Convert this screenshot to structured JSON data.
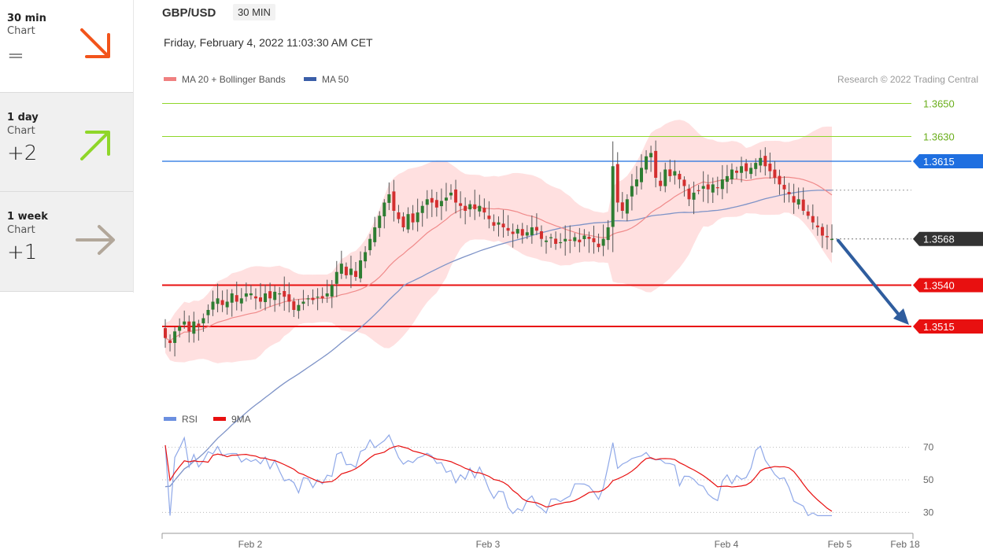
{
  "header": {
    "symbol": "GBP/USD",
    "timeframe_badge": "30 MIN",
    "datetime": "Friday, February 4, 2022 11:03:30 AM CET",
    "copyright": "Research © 2022 Trading Central"
  },
  "sidebar": {
    "items": [
      {
        "title": "30 min",
        "subtitle": "Chart",
        "score": "=",
        "arrow": "arrow-down-right-icon",
        "color": "#f2541b",
        "direction": "down"
      },
      {
        "title": "1 day",
        "subtitle": "Chart",
        "score": "+2",
        "arrow": "arrow-up-right-icon",
        "color": "#8fd629",
        "direction": "up"
      },
      {
        "title": "1 week",
        "subtitle": "Chart",
        "score": "+1",
        "arrow": "arrow-right-icon",
        "color": "#b2a79a",
        "direction": "right"
      }
    ]
  },
  "chart_data": {
    "type": "candlestick",
    "legend": [
      {
        "name": "MA 20 + Bollinger Bands",
        "color": "#f08080"
      },
      {
        "name": "MA 50",
        "color": "#3a5ea8"
      }
    ],
    "ylim": [
      1.3465,
      1.3665
    ],
    "x_ticks": [
      "Feb 2",
      "Feb 3",
      "Feb 4",
      "Feb 5",
      "Feb 18"
    ],
    "levels": [
      {
        "value": 1.365,
        "label": "1.3650",
        "kind": "target",
        "color": "#8fd629"
      },
      {
        "value": 1.363,
        "label": "1.3630",
        "kind": "target",
        "color": "#8fd629"
      },
      {
        "value": 1.3615,
        "label": "1.3615",
        "kind": "pivot",
        "color": "#1f6fe0"
      },
      {
        "value": 1.3568,
        "label": "1.3568",
        "kind": "last",
        "color": "#333333"
      },
      {
        "value": 1.354,
        "label": "1.3540",
        "kind": "support",
        "color": "#e81010"
      },
      {
        "value": 1.3515,
        "label": "1.3515",
        "kind": "support",
        "color": "#e81010"
      }
    ],
    "forecast_arrow": {
      "from": 1.3568,
      "to": 1.3515,
      "color": "#2f5d9e"
    },
    "closes": [
      1.3508,
      1.3505,
      1.3512,
      1.3515,
      1.3518,
      1.3512,
      1.3518,
      1.3515,
      1.352,
      1.3525,
      1.353,
      1.3532,
      1.3528,
      1.353,
      1.3535,
      1.353,
      1.3532,
      1.3535,
      1.3535,
      1.3532,
      1.353,
      1.3535,
      1.3532,
      1.3536,
      1.3535,
      1.3533,
      1.353,
      1.3525,
      1.3528,
      1.353,
      1.3532,
      1.3531,
      1.3533,
      1.3532,
      1.3535,
      1.354,
      1.3548,
      1.3553,
      1.3546,
      1.355,
      1.3545,
      1.3555,
      1.356,
      1.3568,
      1.3575,
      1.3582,
      1.359,
      1.3595,
      1.3585,
      1.358,
      1.3575,
      1.3583,
      1.3578,
      1.3584,
      1.3588,
      1.3592,
      1.359,
      1.3587,
      1.3591,
      1.3593,
      1.3596,
      1.359,
      1.3588,
      1.3585,
      1.3589,
      1.3586,
      1.3588,
      1.3584,
      1.358,
      1.3576,
      1.3578,
      1.3575,
      1.3573,
      1.3571,
      1.3574,
      1.357,
      1.3572,
      1.3575,
      1.3573,
      1.3568,
      1.3567,
      1.3569,
      1.3565,
      1.3566,
      1.3568,
      1.3567,
      1.3569,
      1.3566,
      1.357,
      1.3568,
      1.3566,
      1.3563,
      1.3568,
      1.3575,
      1.3612,
      1.359,
      1.3585,
      1.3592,
      1.36,
      1.3604,
      1.3611,
      1.3618,
      1.362,
      1.3605,
      1.36,
      1.361,
      1.3606,
      1.3609,
      1.3604,
      1.36,
      1.3592,
      1.3596,
      1.3597,
      1.36,
      1.3598,
      1.3601,
      1.3599,
      1.3604,
      1.3606,
      1.361,
      1.3608,
      1.3612,
      1.3609,
      1.3611,
      1.3614,
      1.3617,
      1.3612,
      1.3609,
      1.3605,
      1.3601,
      1.3598,
      1.3595,
      1.359,
      1.3592,
      1.3585,
      1.3582,
      1.3578,
      1.3575,
      1.357,
      1.3569,
      1.3568
    ],
    "rsi": {
      "legend": [
        {
          "name": "RSI",
          "color": "#6b8fe0"
        },
        {
          "name": "9MA",
          "color": "#e81010"
        }
      ],
      "ylim": [
        20,
        80
      ],
      "levels": [
        70,
        50,
        30
      ],
      "level_labels": [
        "70",
        "50",
        "30"
      ]
    }
  }
}
